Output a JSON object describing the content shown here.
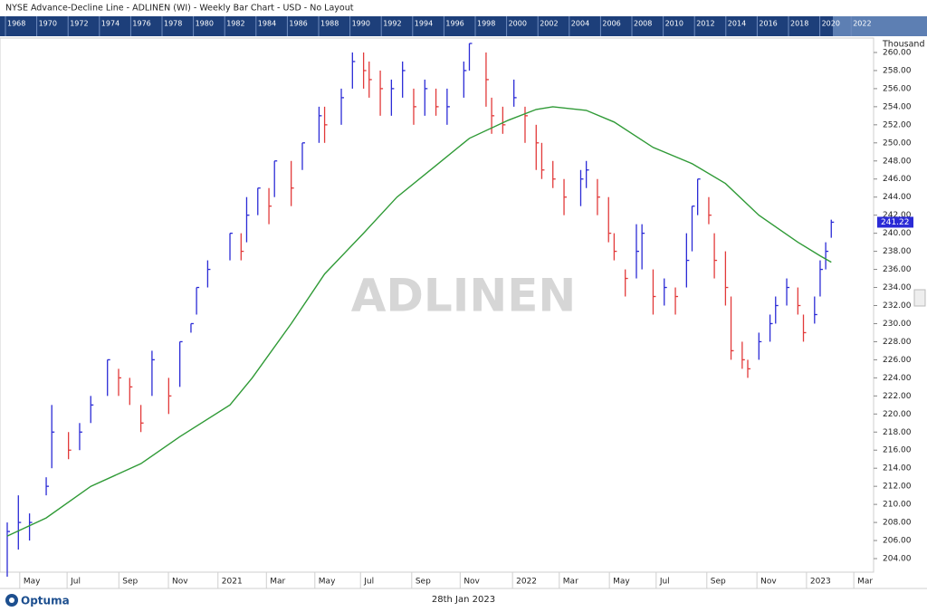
{
  "chart_data": {
    "type": "ohlc",
    "title": "NYSE  Advance-Decline Line - ADLINEN (WI) - Weekly Bar Chart - USD - No Layout",
    "watermark": "ADLINEN",
    "y_unit": "Thousand",
    "last_label": "241.22",
    "footer_date": "28th Jan 2023",
    "brand": "Optuma",
    "overview_years": [
      "1968",
      "1970",
      "1972",
      "1974",
      "1976",
      "1978",
      "1980",
      "1982",
      "1984",
      "1986",
      "1988",
      "1990",
      "1992",
      "1994",
      "1996",
      "1998",
      "2000",
      "2002",
      "2004",
      "2006",
      "2008",
      "2010",
      "2012",
      "2014",
      "2016",
      "2018",
      "2020",
      "2022"
    ],
    "up_color": "#2b2bd6",
    "down_color": "#e23a3a",
    "xlim": [
      -1.3,
      155.6
    ],
    "ylim": [
      202.5,
      261.6
    ],
    "xticks": [
      {
        "value": 4.2,
        "label": "May"
      },
      {
        "value": 12.7,
        "label": "Jul"
      },
      {
        "value": 22,
        "label": "Sep"
      },
      {
        "value": 30.9,
        "label": "Nov"
      },
      {
        "value": 39.8,
        "label": "2021"
      },
      {
        "value": 48.5,
        "label": "Mar"
      },
      {
        "value": 57.2,
        "label": "May"
      },
      {
        "value": 65.4,
        "label": "Jul"
      },
      {
        "value": 74.6,
        "label": "Sep"
      },
      {
        "value": 83.3,
        "label": "Nov"
      },
      {
        "value": 92.7,
        "label": "2022"
      },
      {
        "value": 101.1,
        "label": "Mar"
      },
      {
        "value": 110.1,
        "label": "May"
      },
      {
        "value": 118.5,
        "label": "Jul"
      },
      {
        "value": 127.6,
        "label": "Sep"
      },
      {
        "value": 136.6,
        "label": "Nov"
      },
      {
        "value": 145.5,
        "label": "2023"
      },
      {
        "value": 154,
        "label": "Mar"
      }
    ],
    "yticks": [
      {
        "value": 204,
        "label": "204.00"
      },
      {
        "value": 206,
        "label": "206.00"
      },
      {
        "value": 208,
        "label": "208.00"
      },
      {
        "value": 210,
        "label": "210.00"
      },
      {
        "value": 212,
        "label": "212.00"
      },
      {
        "value": 214,
        "label": "214.00"
      },
      {
        "value": 216,
        "label": "216.00"
      },
      {
        "value": 218,
        "label": "218.00"
      },
      {
        "value": 220,
        "label": "220.00"
      },
      {
        "value": 222,
        "label": "222.00"
      },
      {
        "value": 224,
        "label": "224.00"
      },
      {
        "value": 226,
        "label": "226.00"
      },
      {
        "value": 228,
        "label": "228.00"
      },
      {
        "value": 230,
        "label": "230.00"
      },
      {
        "value": 232,
        "label": "232.00"
      },
      {
        "value": 234,
        "label": "234.00"
      },
      {
        "value": 236,
        "label": "236.00"
      },
      {
        "value": 238,
        "label": "238.00"
      },
      {
        "value": 240,
        "label": "240.00"
      },
      {
        "value": 242,
        "label": "242.00"
      },
      {
        "value": 244,
        "label": "244.00"
      },
      {
        "value": 246,
        "label": "246.00"
      },
      {
        "value": 248,
        "label": "248.00"
      },
      {
        "value": 250,
        "label": "250.00"
      },
      {
        "value": 252,
        "label": "252.00"
      },
      {
        "value": 254,
        "label": "254.00"
      },
      {
        "value": 256,
        "label": "256.00"
      },
      {
        "value": 258,
        "label": "258.00"
      },
      {
        "value": 260,
        "label": "260.00"
      }
    ],
    "x": [
      0,
      2,
      4,
      7,
      8,
      11,
      13,
      15,
      18,
      20,
      22,
      24,
      26,
      29,
      31,
      33,
      34,
      36,
      40,
      42,
      43,
      45,
      47,
      48,
      51,
      53,
      56,
      57,
      60,
      62,
      64,
      65,
      67,
      69,
      71,
      73,
      75,
      77,
      79,
      82,
      83,
      86,
      87,
      89,
      91,
      93,
      95,
      96,
      98,
      100,
      103,
      104,
      106,
      108,
      109,
      111,
      113,
      114,
      116,
      118,
      120,
      122,
      123,
      124,
      126,
      127,
      129,
      130,
      132,
      133,
      135,
      137,
      138,
      140,
      142,
      143,
      145,
      146,
      147,
      148
    ],
    "high": [
      208,
      211,
      209,
      213,
      221,
      218,
      219,
      222,
      226,
      225,
      224,
      221,
      227,
      224,
      228,
      230,
      234,
      237,
      240,
      240,
      244,
      245,
      245,
      248,
      248,
      250,
      254,
      254,
      256,
      260,
      260,
      259,
      258,
      257,
      259,
      256,
      257,
      256,
      256,
      259,
      261,
      260,
      255,
      254,
      257,
      254,
      252,
      250,
      248,
      246,
      247,
      248,
      246,
      244,
      240,
      236,
      241,
      241,
      236,
      235,
      234,
      240,
      243,
      246,
      244,
      240,
      238,
      233,
      228,
      226,
      229,
      231,
      233,
      235,
      234,
      231,
      233,
      237,
      239,
      241.5
    ],
    "low": [
      202,
      205,
      206,
      211,
      214,
      215,
      216,
      219,
      222,
      222,
      221,
      218,
      222,
      220,
      223,
      229,
      231,
      234,
      237,
      237,
      239,
      242,
      241,
      244,
      243,
      247,
      250,
      250,
      252,
      256,
      256,
      255,
      253,
      253,
      255,
      252,
      253,
      253,
      252,
      255,
      258,
      254,
      251,
      251,
      254,
      250,
      247,
      246,
      245,
      242,
      243,
      245,
      242,
      239,
      237,
      233,
      235,
      236,
      231,
      232,
      231,
      234,
      238,
      242,
      241,
      235,
      232,
      226,
      225,
      224,
      226,
      228,
      230,
      232,
      231,
      228,
      230,
      233,
      236,
      239.5
    ],
    "close": [
      207,
      208,
      208,
      212,
      218,
      216,
      218,
      221,
      226,
      224,
      223,
      219,
      226,
      222,
      228,
      230,
      234,
      236,
      240,
      238,
      242,
      245,
      243,
      248,
      245,
      250,
      253,
      252,
      255,
      259,
      258,
      257,
      256,
      256,
      258,
      254,
      256,
      254,
      254,
      258,
      261,
      257,
      253,
      252,
      255,
      253,
      250,
      247,
      246,
      244,
      246,
      247,
      244,
      240,
      238,
      235,
      238,
      240,
      233,
      234,
      233,
      237,
      243,
      246,
      242,
      237,
      234,
      227,
      226,
      225,
      228,
      230,
      232,
      234,
      232,
      229,
      231,
      236,
      238,
      241.22
    ],
    "moving_average": {
      "color": "#2f9a36",
      "x": [
        0,
        7,
        15,
        24,
        31,
        40,
        44,
        51,
        57,
        64,
        70,
        77,
        83,
        90,
        95,
        98,
        104,
        109,
        116,
        123,
        129,
        135,
        142,
        146,
        148
      ],
      "values": [
        206.5,
        208.5,
        212,
        214.5,
        217.5,
        221,
        224,
        230,
        235.5,
        240,
        244,
        247.5,
        250.5,
        252.5,
        253.7,
        254,
        253.6,
        252.3,
        249.5,
        247.7,
        245.5,
        242,
        239,
        237.5,
        236.8
      ]
    }
  }
}
